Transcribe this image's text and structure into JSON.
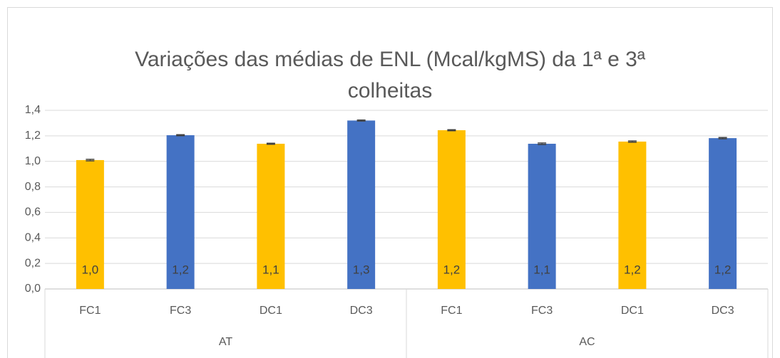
{
  "chart_data": {
    "type": "bar",
    "title": "Variações das médias de ENL (Mcal/kgMS) da 1ª e 3ª colheitas",
    "groups": [
      {
        "name": "AT",
        "categories": [
          "FC1",
          "FC3",
          "DC1",
          "DC3"
        ]
      },
      {
        "name": "AC",
        "categories": [
          "FC1",
          "FC3",
          "DC1",
          "DC3"
        ]
      }
    ],
    "values": [
      1.01,
      1.205,
      1.138,
      1.32,
      1.244,
      1.138,
      1.155,
      1.182
    ],
    "errors": [
      0.006,
      0.004,
      0.004,
      0.004,
      0.004,
      0.006,
      0.005,
      0.005
    ],
    "value_labels": [
      "1,0",
      "1,2",
      "1,1",
      "1,3",
      "1,2",
      "1,1",
      "1,2",
      "1,2"
    ],
    "colors": [
      "#ffc000",
      "#4472c4",
      "#ffc000",
      "#4472c4",
      "#ffc000",
      "#4472c4",
      "#ffc000",
      "#4472c4"
    ],
    "ylim": [
      0,
      1.4
    ],
    "yticks": [
      {
        "value": 0,
        "label": "0,0"
      },
      {
        "value": 0.2,
        "label": "0,2"
      },
      {
        "value": 0.4,
        "label": "0,4"
      },
      {
        "value": 0.6,
        "label": "0,6"
      },
      {
        "value": 0.8,
        "label": "0,8"
      },
      {
        "value": 1.0,
        "label": "1,0"
      },
      {
        "value": 1.2,
        "label": "1,2"
      },
      {
        "value": 1.4,
        "label": "1,4"
      }
    ],
    "grid": true
  }
}
